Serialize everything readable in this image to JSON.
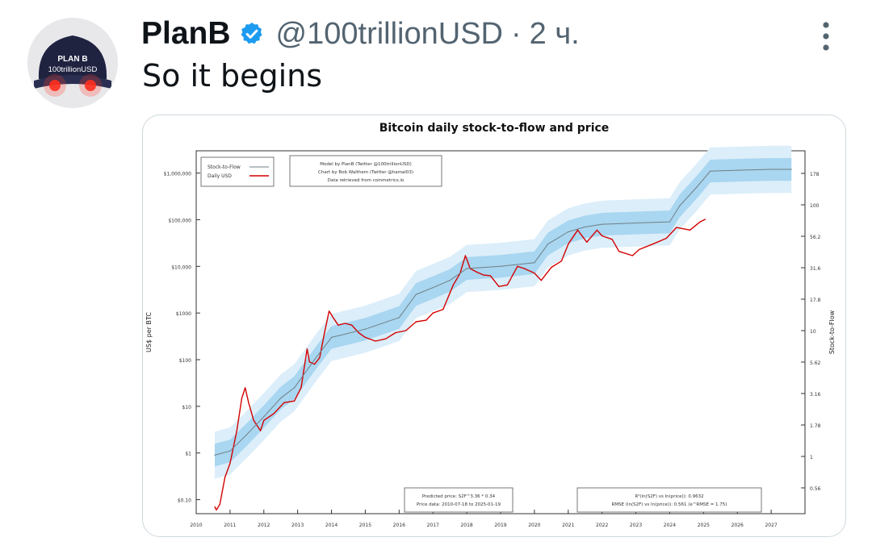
{
  "tweet": {
    "author_name": "PlanB",
    "handle": "@100trillionUSD",
    "separator": "·",
    "time": "2 ч.",
    "text": "So it begins",
    "avatar_cap_text_1": "PLAN B",
    "avatar_cap_text_2": "100trillionUSD"
  },
  "icons": {
    "verified": "verified-badge-icon",
    "more": "more-vertical-icon"
  },
  "colors": {
    "verified": "#1d9bf0",
    "price_line": "#d40000",
    "model_line": "#6e7f86",
    "band_outer": "#dbeefa",
    "band_inner": "#a9d6f0"
  },
  "chart_data": {
    "type": "line",
    "title": "Bitcoin daily stock-to-flow and price",
    "ylabel": "US$ per BTC",
    "ylabel_right": "Stock-to-Flow",
    "y_scale": "log",
    "ylim": [
      0.05,
      3000000
    ],
    "x_ticks": [
      "2010",
      "2011",
      "2012",
      "2013",
      "2014",
      "2015",
      "2016",
      "2017",
      "2018",
      "2019",
      "2020",
      "2021",
      "2022",
      "2023",
      "2024",
      "2025",
      "2026",
      "2027"
    ],
    "y_ticks": [
      {
        "v": 0.1,
        "label": "$0.10"
      },
      {
        "v": 1,
        "label": "$1"
      },
      {
        "v": 10,
        "label": "$10"
      },
      {
        "v": 100,
        "label": "$100"
      },
      {
        "v": 1000,
        "label": "$1000"
      },
      {
        "v": 10000,
        "label": "$10,000"
      },
      {
        "v": 100000,
        "label": "$100,000"
      },
      {
        "v": 1000000,
        "label": "$1,000,000"
      }
    ],
    "y2_ticks": [
      "0.56",
      "1",
      "1.78",
      "3.16",
      "5.62",
      "10",
      "17.8",
      "31.6",
      "56.2",
      "100",
      "178"
    ],
    "legend": [
      {
        "name": "Stock-to-Flow",
        "color": "#6e7f86"
      },
      {
        "name": "Daily USD",
        "color": "#d40000"
      }
    ],
    "legend_placement": "top-left",
    "credits": [
      "Model by PlanB (Twitter @100trillionUSD)",
      "Chart by Bob Walthem (Twitter @hamal03)",
      "Data retrieved from coinmetrics.io"
    ],
    "annotation_left": [
      "Predicted price: S2F^3.36 * 0.34",
      "Price data: 2010-07-18 to 2025-01-19"
    ],
    "annotation_right": [
      "R²(ln(S2F) vs ln(price)): 0.9632",
      "RMSE (ln(S2F) vs ln(price)): 0.561 (e^RMSE = 1.75)"
    ],
    "series": [
      {
        "name": "Daily USD",
        "x": [
          2010.55,
          2010.6,
          2010.7,
          2010.85,
          2011.0,
          2011.2,
          2011.35,
          2011.45,
          2011.55,
          2011.7,
          2011.9,
          2012.0,
          2012.3,
          2012.6,
          2012.9,
          2013.1,
          2013.28,
          2013.35,
          2013.5,
          2013.65,
          2013.8,
          2013.93,
          2014.05,
          2014.2,
          2014.4,
          2014.6,
          2014.8,
          2015.0,
          2015.3,
          2015.6,
          2015.9,
          2016.2,
          2016.5,
          2016.8,
          2017.0,
          2017.3,
          2017.6,
          2017.8,
          2017.96,
          2018.1,
          2018.3,
          2018.5,
          2018.7,
          2018.95,
          2019.2,
          2019.5,
          2019.7,
          2020.0,
          2020.2,
          2020.5,
          2020.8,
          2021.0,
          2021.28,
          2021.55,
          2021.85,
          2022.0,
          2022.3,
          2022.5,
          2022.9,
          2023.1,
          2023.5,
          2023.9,
          2024.2,
          2024.6,
          2024.9,
          2025.05
        ],
        "values": [
          0.07,
          0.06,
          0.08,
          0.3,
          0.6,
          3,
          15,
          25,
          12,
          5,
          3,
          5,
          7,
          12,
          13,
          25,
          170,
          90,
          80,
          110,
          400,
          1100,
          800,
          550,
          600,
          550,
          380,
          300,
          250,
          280,
          380,
          420,
          650,
          700,
          1000,
          1200,
          4000,
          7000,
          17000,
          9000,
          7500,
          6500,
          6300,
          3700,
          4000,
          10000,
          9000,
          7200,
          5000,
          9500,
          13000,
          30000,
          60000,
          33000,
          60000,
          45000,
          38000,
          21000,
          17000,
          23000,
          30000,
          40000,
          68000,
          60000,
          90000,
          102000
        ]
      },
      {
        "name": "Stock-to-Flow",
        "x": [
          2010.55,
          2011.0,
          2011.5,
          2012.0,
          2012.5,
          2012.9,
          2013.5,
          2014.0,
          2015.0,
          2016.0,
          2016.5,
          2017.0,
          2017.5,
          2018.0,
          2019.0,
          2020.0,
          2020.4,
          2021.0,
          2021.5,
          2022.0,
          2023.0,
          2024.0,
          2024.3,
          2024.8,
          2025.2,
          2026.0,
          2027.0,
          2027.6
        ],
        "values": [
          0.9,
          1.1,
          2.5,
          6,
          15,
          25,
          100,
          300,
          450,
          800,
          2500,
          3500,
          5000,
          9000,
          10000,
          12000,
          30000,
          55000,
          70000,
          80000,
          85000,
          90000,
          200000,
          500000,
          1100000,
          1150000,
          1200000,
          1200000
        ]
      }
    ]
  }
}
